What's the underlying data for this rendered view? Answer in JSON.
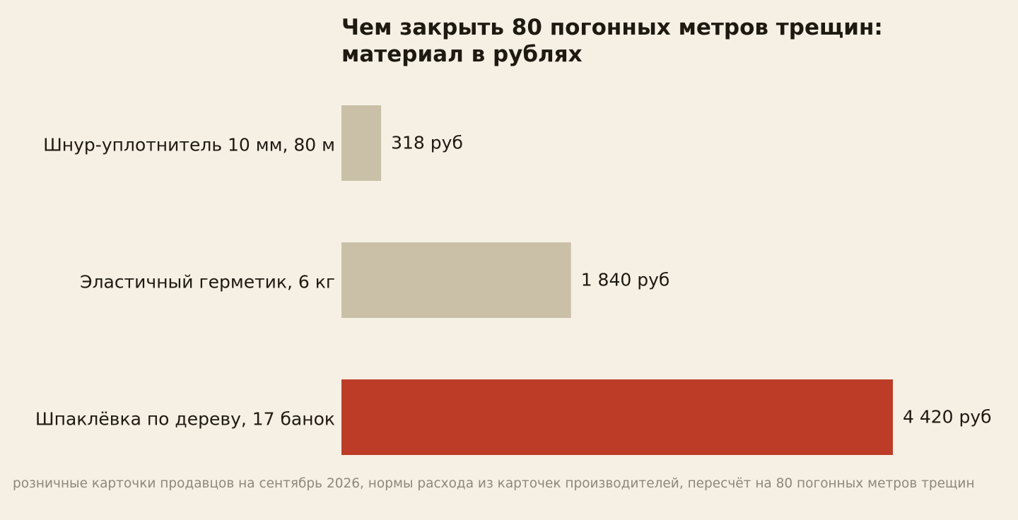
{
  "chart_data": {
    "type": "bar",
    "orientation": "horizontal",
    "title_lines": [
      "Чем закрыть 80 погонных метров трещин:",
      "материал в рублях"
    ],
    "categories": [
      "Шнур-уплотнитель 10 мм, 80 м",
      "Эластичный герметик, 6 кг",
      "Шпаклёвка по дереву, 17 банок"
    ],
    "values": [
      318,
      1840,
      4420
    ],
    "value_labels": [
      "318 руб",
      "1 840 руб",
      "4 420 руб"
    ],
    "colors": [
      "#c9c0a7",
      "#c9c0a7",
      "#bd3c27"
    ],
    "xlim": [
      0,
      4420
    ],
    "grid": false,
    "legend": "none"
  },
  "source": "розничные карточки продавцов на сентябрь 2026, нормы расхода из карточек производителей, пересчёт на 80 погонных метров трещин"
}
